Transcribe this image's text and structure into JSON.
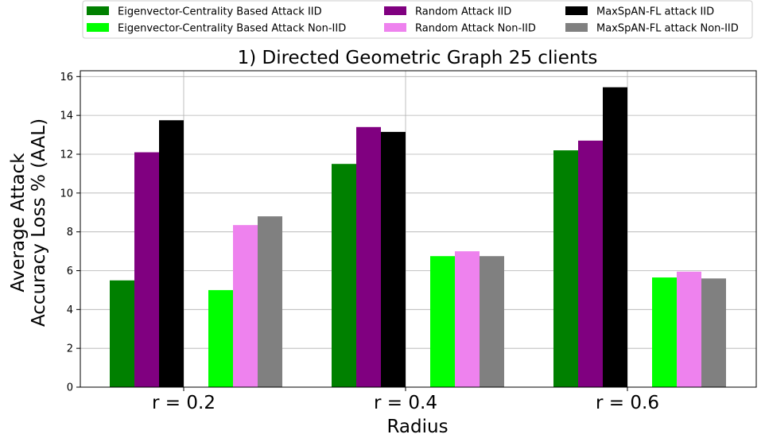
{
  "chart_data": {
    "type": "bar",
    "title": "1) Directed Geometric Graph 25 clients",
    "xlabel": "Radius",
    "ylabel_lines": [
      "Average Attack",
      "Accuracy Loss % (AAL)"
    ],
    "categories": [
      "r = 0.2",
      "r = 0.4",
      "r = 0.6"
    ],
    "ylim": [
      0,
      16.3
    ],
    "yticks": [
      "0",
      "2",
      "4",
      "6",
      "8",
      "10",
      "12",
      "14",
      "16"
    ],
    "grid": true,
    "legend_position": "top",
    "series": [
      {
        "name": "Eigenvector-Centrality Based Attack IID",
        "color": "#008000",
        "values": [
          5.5,
          11.5,
          12.2
        ]
      },
      {
        "name": "Random Attack IID",
        "color": "#800080",
        "values": [
          12.1,
          13.4,
          12.7
        ]
      },
      {
        "name": "MaxSpAN-FL attack IID",
        "color": "#000000",
        "values": [
          13.75,
          13.15,
          15.45
        ]
      },
      {
        "name": "Eigenvector-Centrality Based Attack Non-IID",
        "color": "#00ff00",
        "values": [
          5.0,
          6.75,
          5.65
        ]
      },
      {
        "name": "Random Attack Non-IID",
        "color": "#ee82ee",
        "values": [
          8.35,
          7.0,
          5.95
        ]
      },
      {
        "name": "MaxSpAN-FL attack Non-IID",
        "color": "#808080",
        "values": [
          8.8,
          6.75,
          5.6
        ]
      }
    ]
  }
}
